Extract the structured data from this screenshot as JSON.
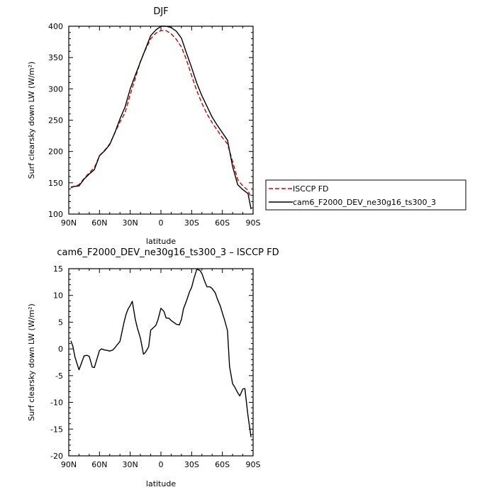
{
  "chart_data": [
    {
      "type": "line",
      "title": "DJF",
      "xlabel": "latitude",
      "ylabel": "Surf clearsky down LW (W/m²)",
      "xlim": [
        90,
        -90
      ],
      "ylim": [
        100,
        400
      ],
      "xticks": [
        90,
        60,
        30,
        0,
        -30,
        -60,
        -90
      ],
      "xtick_labels": [
        "90N",
        "60N",
        "30N",
        "0",
        "30S",
        "60S",
        "90S"
      ],
      "yticks": [
        100,
        150,
        200,
        250,
        300,
        350,
        400
      ],
      "ytick_labels": [
        "100",
        "150",
        "200",
        "250",
        "300",
        "350",
        "400"
      ],
      "grid": false,
      "legend": "right",
      "series": [
        {
          "name": "ISCCP FD",
          "color": "#d00000",
          "dash": "dashed",
          "x": [
            88,
            85,
            80,
            75,
            70,
            65,
            60,
            55,
            50,
            45,
            40,
            35,
            30,
            25,
            20,
            15,
            10,
            5,
            0,
            -5,
            -10,
            -15,
            -20,
            -25,
            -30,
            -35,
            -40,
            -45,
            -50,
            -55,
            -60,
            -65,
            -70,
            -75,
            -80,
            -85,
            -88
          ],
          "y": [
            142,
            144,
            147,
            157,
            166,
            174,
            193,
            202,
            212,
            230,
            247,
            262,
            291,
            317,
            344,
            363,
            380,
            389,
            393,
            393,
            388,
            379,
            367,
            346,
            321,
            297,
            277,
            260,
            246,
            234,
            222,
            212,
            184,
            155,
            145,
            138,
            126
          ]
        },
        {
          "name": "cam6_F2000_DEV_ne30g16_ts300_3",
          "color": "#000000",
          "dash": "solid",
          "x": [
            88,
            85,
            80,
            75,
            70,
            65,
            60,
            55,
            50,
            45,
            40,
            35,
            30,
            25,
            20,
            15,
            10,
            5,
            0,
            -5,
            -10,
            -15,
            -20,
            -25,
            -30,
            -35,
            -40,
            -45,
            -50,
            -55,
            -60,
            -65,
            -70,
            -75,
            -80,
            -85,
            -88
          ],
          "y": [
            143,
            144,
            145,
            156,
            164,
            171,
            193,
            201,
            211,
            230,
            252,
            271,
            300,
            322,
            343,
            364,
            385,
            394,
            400,
            400,
            398,
            392,
            381,
            357,
            334,
            309,
            289,
            272,
            255,
            242,
            230,
            218,
            176,
            147,
            139,
            133,
            108
          ]
        }
      ]
    },
    {
      "type": "line",
      "title": "cam6_F2000_DEV_ne30g16_ts300_3 – ISCCP FD",
      "xlabel": "latitude",
      "ylabel": "Surf clearsky down LW (W/m²)",
      "xlim": [
        90,
        -90
      ],
      "ylim": [
        -20,
        15
      ],
      "xticks": [
        90,
        60,
        30,
        0,
        -30,
        -60,
        -90
      ],
      "xtick_labels": [
        "90N",
        "60N",
        "30N",
        "0",
        "30S",
        "60S",
        "90S"
      ],
      "yticks": [
        -20,
        -15,
        -10,
        -5,
        0,
        5,
        10,
        15
      ],
      "ytick_labels": [
        "-20",
        "-15",
        "-10",
        "-5",
        "0",
        "5",
        "10",
        "15"
      ],
      "grid": false,
      "series": [
        {
          "color": "#000000",
          "dash": "solid",
          "x": [
            88,
            86,
            84,
            80,
            75,
            72,
            70,
            67,
            65,
            60,
            58,
            55,
            52,
            50,
            47,
            45,
            40,
            36,
            34,
            32,
            30,
            28,
            25,
            23,
            20,
            17,
            15,
            12,
            10,
            5,
            3,
            0,
            -3,
            -5,
            -8,
            -10,
            -13,
            -15,
            -18,
            -20,
            -22,
            -25,
            -28,
            -30,
            -32,
            -35,
            -38,
            -40,
            -43,
            -45,
            -48,
            -50,
            -53,
            -55,
            -58,
            -60,
            -62,
            -65,
            -67,
            -70,
            -72,
            -75,
            -77,
            -80,
            -82,
            -85,
            -88
          ],
          "y": [
            1.5,
            0.5,
            -1.5,
            -3.9,
            -1.3,
            -1.2,
            -1.4,
            -3.4,
            -3.5,
            -0.3,
            0.0,
            -0.2,
            -0.3,
            -0.4,
            -0.2,
            0.2,
            1.4,
            5.0,
            6.5,
            7.5,
            8.1,
            8.9,
            5.5,
            3.9,
            2.0,
            -1.0,
            -0.6,
            0.4,
            3.5,
            4.4,
            5.4,
            7.6,
            7.0,
            5.8,
            5.7,
            5.3,
            4.9,
            4.6,
            4.5,
            5.5,
            7.5,
            9.0,
            10.7,
            11.5,
            13.0,
            14.9,
            14.7,
            14.1,
            12.5,
            11.6,
            11.6,
            11.3,
            10.5,
            9.4,
            8.0,
            6.7,
            5.5,
            3.4,
            -3.3,
            -6.5,
            -7.1,
            -8.2,
            -8.8,
            -7.5,
            -7.4,
            -12.5,
            -16.5
          ]
        }
      ]
    }
  ]
}
